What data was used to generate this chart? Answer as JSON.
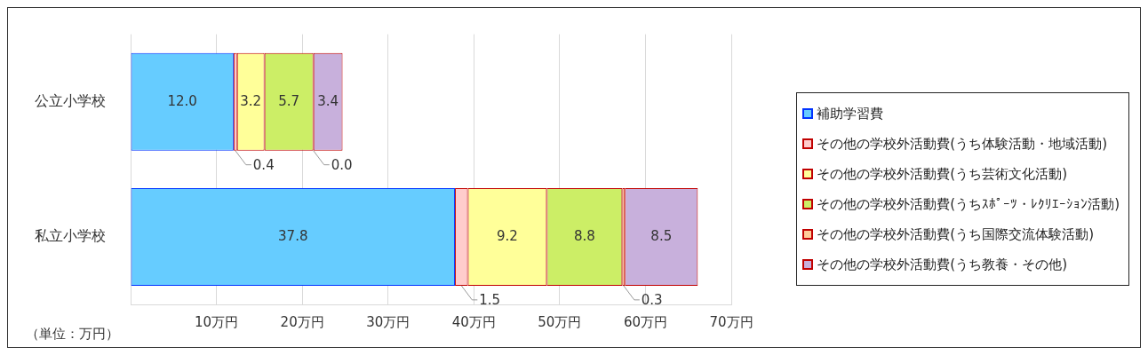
{
  "chart_data": {
    "type": "bar",
    "orientation": "horizontal",
    "stacked": true,
    "categories": [
      "公立小学校",
      "私立小学校"
    ],
    "series": [
      {
        "name": "補助学習費",
        "color": "#66ccff",
        "values": [
          12.0,
          37.8
        ],
        "value_labels": [
          "12.0",
          "37.8"
        ]
      },
      {
        "name": "その他の学校外活動費(うち体験活動・地域活動)",
        "color": "#ffcccc",
        "values": [
          0.4,
          1.5
        ],
        "value_labels": [
          "0.4",
          "1.5"
        ]
      },
      {
        "name": "その他の学校外活動費(うち芸術文化活動)",
        "color": "#ffff99",
        "values": [
          3.2,
          9.2
        ],
        "value_labels": [
          "3.2",
          "9.2"
        ]
      },
      {
        "name": "その他の学校外活動費(うちｽﾎﾟｰﾂ・ﾚｸﾘｴｰｼｮﾝ活動)",
        "color": "#ccee66",
        "values": [
          5.7,
          8.8
        ],
        "value_labels": [
          "5.7",
          "8.8"
        ]
      },
      {
        "name": "その他の学校外活動費(うち国際交流体験活動)",
        "color": "#ffcc99",
        "values": [
          0.0,
          0.3
        ],
        "value_labels": [
          "0.0",
          "0.3"
        ]
      },
      {
        "name": "その他の学校外活動費(うち教養・その他)",
        "color": "#c8b0dc",
        "values": [
          3.4,
          8.5
        ],
        "value_labels": [
          "3.4",
          "8.5"
        ]
      }
    ],
    "xlim": [
      0,
      70
    ],
    "xticks": [
      {
        "value": 0,
        "label": null
      },
      {
        "value": 10,
        "label": "10万円"
      },
      {
        "value": 20,
        "label": "20万円"
      },
      {
        "value": 30,
        "label": "30万円"
      },
      {
        "value": 40,
        "label": "40万円"
      },
      {
        "value": 50,
        "label": "50万円"
      },
      {
        "value": 60,
        "label": "60万円"
      },
      {
        "value": 70,
        "label": "70万円"
      }
    ],
    "grid": "x",
    "legend": "right",
    "annotations": [
      "（単位：万円）"
    ]
  }
}
